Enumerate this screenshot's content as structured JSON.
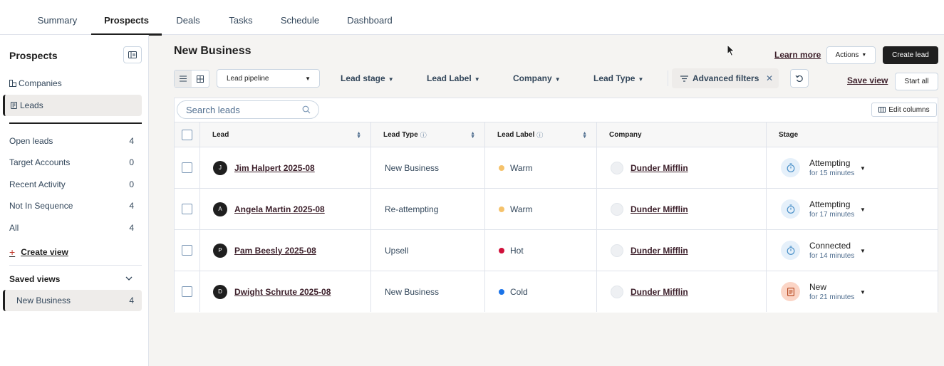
{
  "nav": {
    "tabs": [
      "Summary",
      "Prospects",
      "Deals",
      "Tasks",
      "Schedule",
      "Dashboard"
    ],
    "active": "Prospects"
  },
  "sidebar": {
    "title": "Prospects",
    "types": [
      {
        "label": "Companies",
        "icon": "building-icon"
      },
      {
        "label": "Leads",
        "icon": "document-icon",
        "active": true
      }
    ],
    "views": [
      {
        "label": "Open leads",
        "count": "4"
      },
      {
        "label": "Target Accounts",
        "count": "0"
      },
      {
        "label": "Recent Activity",
        "count": "0"
      },
      {
        "label": "Not In Sequence",
        "count": "4"
      },
      {
        "label": "All",
        "count": "4"
      }
    ],
    "create_view": "Create view",
    "saved_title": "Saved views",
    "saved": [
      {
        "label": "New Business",
        "count": "4"
      }
    ]
  },
  "header": {
    "title": "New Business",
    "learn_more": "Learn more",
    "actions": "Actions",
    "create_lead": "Create lead"
  },
  "filters": {
    "pipeline": "Lead pipeline",
    "items": [
      "Lead stage",
      "Lead Label",
      "Company",
      "Lead Type"
    ],
    "advanced": "Advanced filters",
    "save_view": "Save view",
    "start_all": "Start all"
  },
  "table": {
    "search_placeholder": "Search leads",
    "edit_columns": "Edit columns",
    "columns": [
      "Lead",
      "Lead Type",
      "Lead Label",
      "Company",
      "Stage"
    ],
    "rows": [
      {
        "initial": "J",
        "lead": "Jim Halpert 2025-08",
        "type": "New Business",
        "label": "Warm",
        "label_color": "#f5c26b",
        "company": "Dunder Mifflin",
        "stage": "Attempting",
        "stage_sub": "for 15 minutes",
        "stage_icon": "timer-icon"
      },
      {
        "initial": "A",
        "lead": "Angela Martin 2025-08",
        "type": "Re-attempting",
        "label": "Warm",
        "label_color": "#f5c26b",
        "company": "Dunder Mifflin",
        "stage": "Attempting",
        "stage_sub": "for 17 minutes",
        "stage_icon": "timer-icon"
      },
      {
        "initial": "P",
        "lead": "Pam Beesly 2025-08",
        "type": "Upsell",
        "label": "Hot",
        "label_color": "#d0103a",
        "company": "Dunder Mifflin",
        "stage": "Connected",
        "stage_sub": "for 14 minutes",
        "stage_icon": "timer-icon"
      },
      {
        "initial": "D",
        "lead": "Dwight Schrute 2025-08",
        "type": "New Business",
        "label": "Cold",
        "label_color": "#1a73e8",
        "company": "Dunder Mifflin",
        "stage": "New",
        "stage_sub": "for 21 minutes",
        "stage_icon": "clipboard-icon"
      }
    ]
  }
}
